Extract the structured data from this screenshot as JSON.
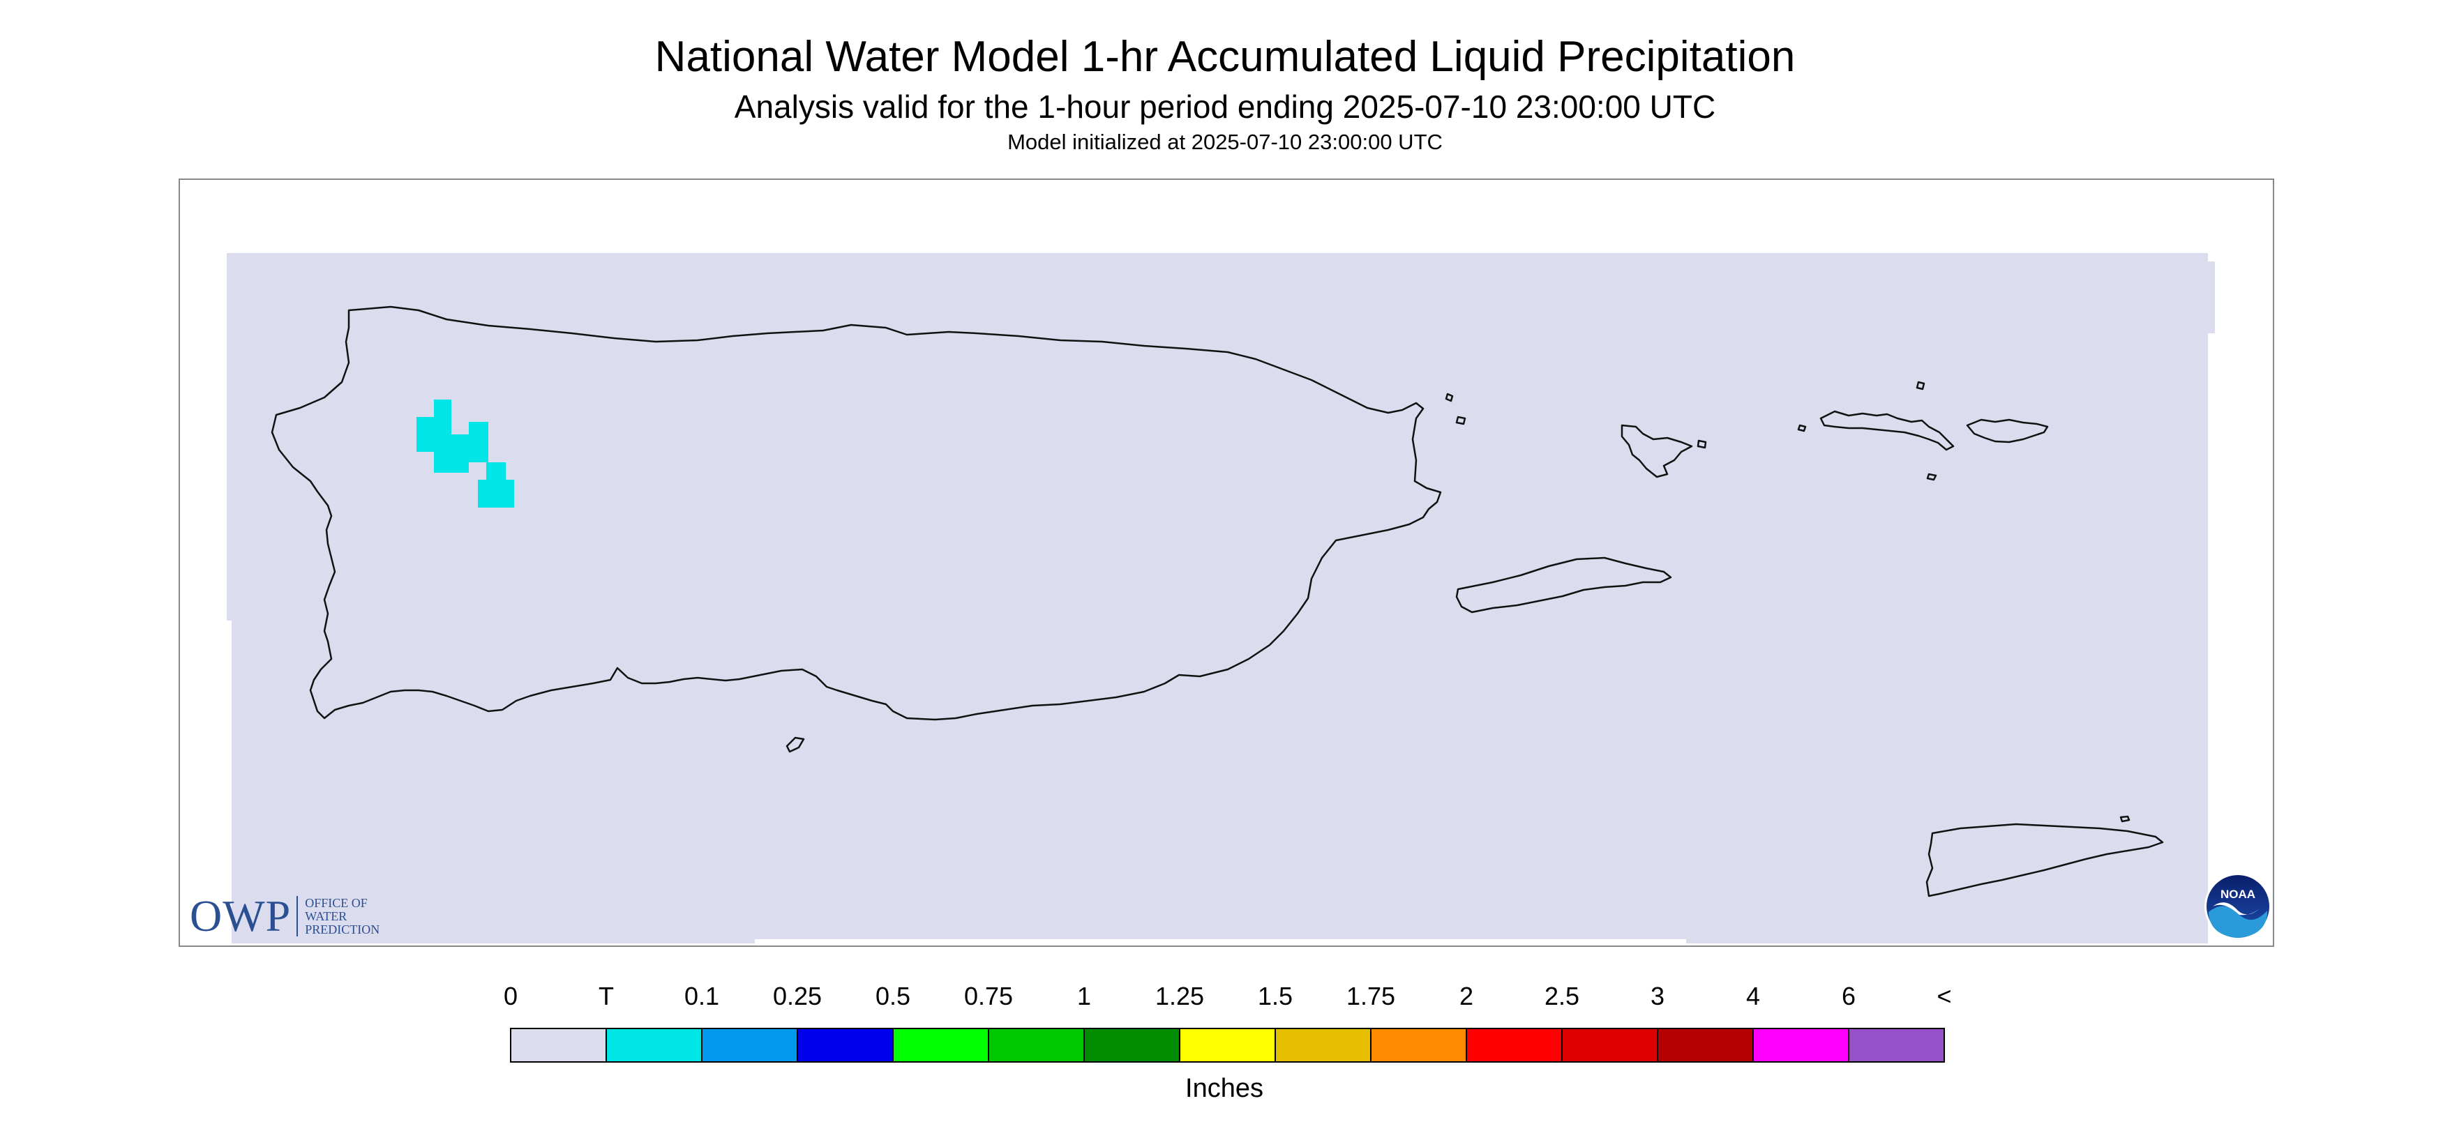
{
  "header": {
    "title": "National Water Model 1-hr Accumulated Liquid Precipitation",
    "subtitle": "Analysis valid for the 1-hour period ending 2025-07-10 23:00:00 UTC",
    "init": "Model initialized at 2025-07-10 23:00:00 UTC"
  },
  "map": {
    "region": "Puerto Rico and U.S. Virgin Islands",
    "background_color": "#dcdcef"
  },
  "legend": {
    "units": "Inches",
    "labels": [
      "0",
      "T",
      "0.1",
      "0.25",
      "0.5",
      "0.75",
      "1",
      "1.25",
      "1.5",
      "1.75",
      "2",
      "2.5",
      "3",
      "4",
      "6",
      "<"
    ],
    "colors": [
      "#dcdcef",
      "#00e6e6",
      "#0099ee",
      "#0000ee",
      "#00ff00",
      "#00c800",
      "#008c00",
      "#ffff00",
      "#e6be00",
      "#ff8c00",
      "#ff0000",
      "#dc0000",
      "#b40000",
      "#ff00ff",
      "#9650c8"
    ]
  },
  "logos": {
    "owp_mark": "OWP",
    "owp_lines": [
      "OFFICE OF",
      "WATER",
      "PREDICTION"
    ],
    "noaa": "NOAA"
  }
}
